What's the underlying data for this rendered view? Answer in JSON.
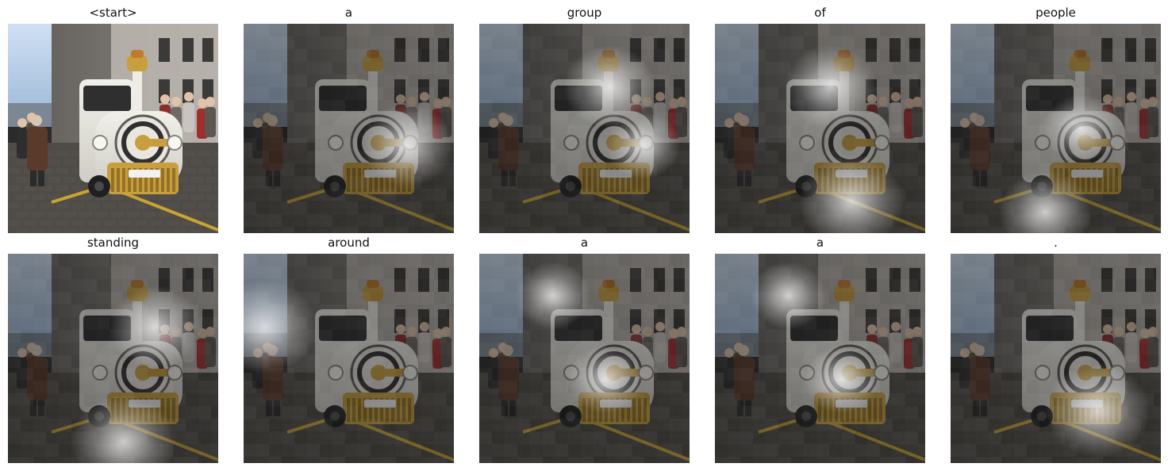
{
  "figure": {
    "panels": [
      {
        "word": "<start>",
        "attention": null,
        "dim": 0.0
      },
      {
        "word": "a",
        "attention": [
          [
            0.78,
            0.58,
            0.22
          ]
        ],
        "dim": 0.45
      },
      {
        "word": "group",
        "attention": [
          [
            0.62,
            0.3,
            0.22
          ],
          [
            0.78,
            0.58,
            0.18
          ]
        ],
        "dim": 0.45
      },
      {
        "word": "of",
        "attention": [
          [
            0.55,
            0.3,
            0.22
          ],
          [
            0.65,
            0.85,
            0.25
          ]
        ],
        "dim": 0.45
      },
      {
        "word": "people",
        "attention": [
          [
            0.45,
            0.9,
            0.22
          ],
          [
            0.62,
            0.5,
            0.18
          ]
        ],
        "dim": 0.45
      },
      {
        "word": "standing",
        "attention": [
          [
            0.7,
            0.35,
            0.22
          ],
          [
            0.55,
            0.9,
            0.25
          ]
        ],
        "dim": 0.45
      },
      {
        "word": "around",
        "attention": [
          [
            0.1,
            0.35,
            0.25
          ]
        ],
        "dim": 0.45
      },
      {
        "word": "a",
        "attention": [
          [
            0.35,
            0.2,
            0.18
          ],
          [
            0.6,
            0.6,
            0.18
          ]
        ],
        "dim": 0.45
      },
      {
        "word": "a",
        "attention": [
          [
            0.35,
            0.2,
            0.18
          ],
          [
            0.6,
            0.6,
            0.18
          ]
        ],
        "dim": 0.45
      },
      {
        "word": ".",
        "attention": [
          [
            0.7,
            0.75,
            0.25
          ]
        ],
        "dim": 0.45
      }
    ]
  }
}
